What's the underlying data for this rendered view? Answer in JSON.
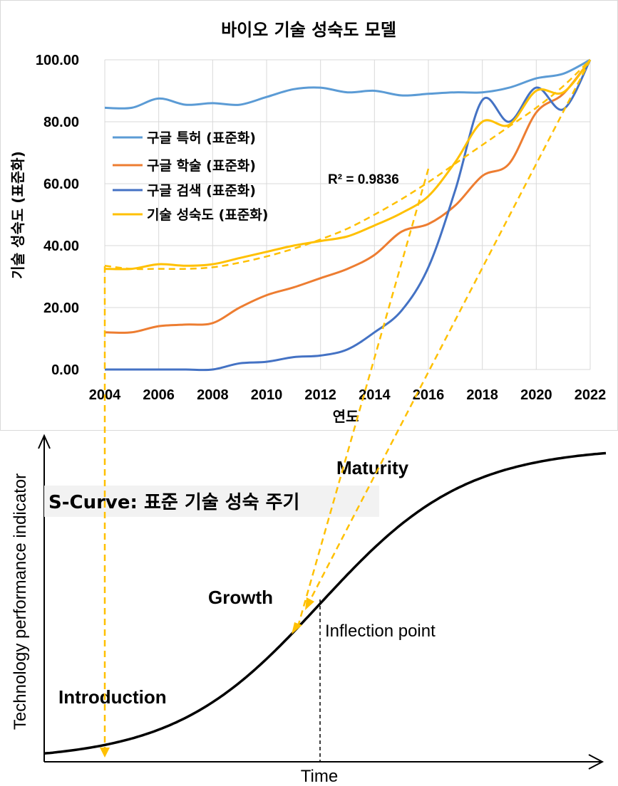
{
  "chart_data": [
    {
      "type": "line",
      "title": "바이오 기술 성숙도 모델",
      "xlabel": "연도",
      "ylabel": "기술 성숙도 (표준화)",
      "xlim": [
        2004,
        2022
      ],
      "ylim": [
        0,
        100
      ],
      "x_ticks": [
        "2004",
        "2006",
        "2008",
        "2010",
        "2012",
        "2014",
        "2016",
        "2018",
        "2020",
        "2022"
      ],
      "y_ticks": [
        "0.00",
        "20.00",
        "40.00",
        "60.00",
        "80.00",
        "100.00"
      ],
      "grid": true,
      "legend_position": "left",
      "annotation": "R² = 0.9836",
      "x": [
        2004,
        2005,
        2006,
        2007,
        2008,
        2009,
        2010,
        2011,
        2012,
        2013,
        2014,
        2015,
        2016,
        2017,
        2018,
        2019,
        2020,
        2021,
        2022
      ],
      "series": [
        {
          "name": "구글 특허 (표준화)",
          "color": "#5B9BD5",
          "values": [
            84.5,
            84.5,
            87.5,
            85.5,
            86.0,
            85.5,
            88.0,
            90.5,
            91.0,
            89.5,
            90.0,
            88.5,
            89.0,
            89.5,
            89.5,
            91.0,
            94.0,
            95.5,
            100.0
          ]
        },
        {
          "name": "구글 학술 (표준화)",
          "color": "#ED7D31",
          "values": [
            12.0,
            12.0,
            14.0,
            14.5,
            15.0,
            20.0,
            24.0,
            26.5,
            29.5,
            32.5,
            37.0,
            44.5,
            47.0,
            53.0,
            62.5,
            66.5,
            83.0,
            89.0,
            100.0
          ]
        },
        {
          "name": "구글 검색 (표준화)",
          "color": "#4472C4",
          "values": [
            0.0,
            0.0,
            0.0,
            0.0,
            0.0,
            2.0,
            2.5,
            4.0,
            4.5,
            6.5,
            12.0,
            19.0,
            33.0,
            58.0,
            87.0,
            80.0,
            91.0,
            84.0,
            100.0
          ]
        },
        {
          "name": "기술 성숙도 (표준화)",
          "color": "#FFC000",
          "values": [
            32.5,
            32.5,
            34.0,
            33.5,
            34.0,
            36.0,
            38.0,
            40.0,
            41.5,
            43.0,
            46.5,
            50.5,
            56.0,
            67.0,
            80.0,
            79.0,
            90.0,
            89.5,
            100.0
          ]
        },
        {
          "name": "",
          "style": "dashed",
          "color": "#FFC000",
          "values": [
            33.5,
            32.5,
            32.5,
            32.5,
            33.0,
            34.5,
            36.5,
            39.0,
            42.0,
            45.5,
            50.0,
            55.0,
            60.5,
            66.5,
            72.5,
            78.5,
            84.5,
            91.5,
            100.0
          ]
        }
      ]
    },
    {
      "type": "line",
      "title": "S-Curve: 표준 기술 성숙 주기",
      "xlabel": "Time",
      "ylabel": "Technology performance indicator",
      "phases": [
        "Introduction",
        "Growth",
        "Maturity"
      ],
      "annotation": "Inflection point"
    }
  ],
  "colors": {
    "patent": "#5B9BD5",
    "academic": "#ED7D31",
    "search": "#4472C4",
    "maturity": "#FFC000",
    "grid": "#D9D9D9",
    "scurve": "#000000"
  }
}
